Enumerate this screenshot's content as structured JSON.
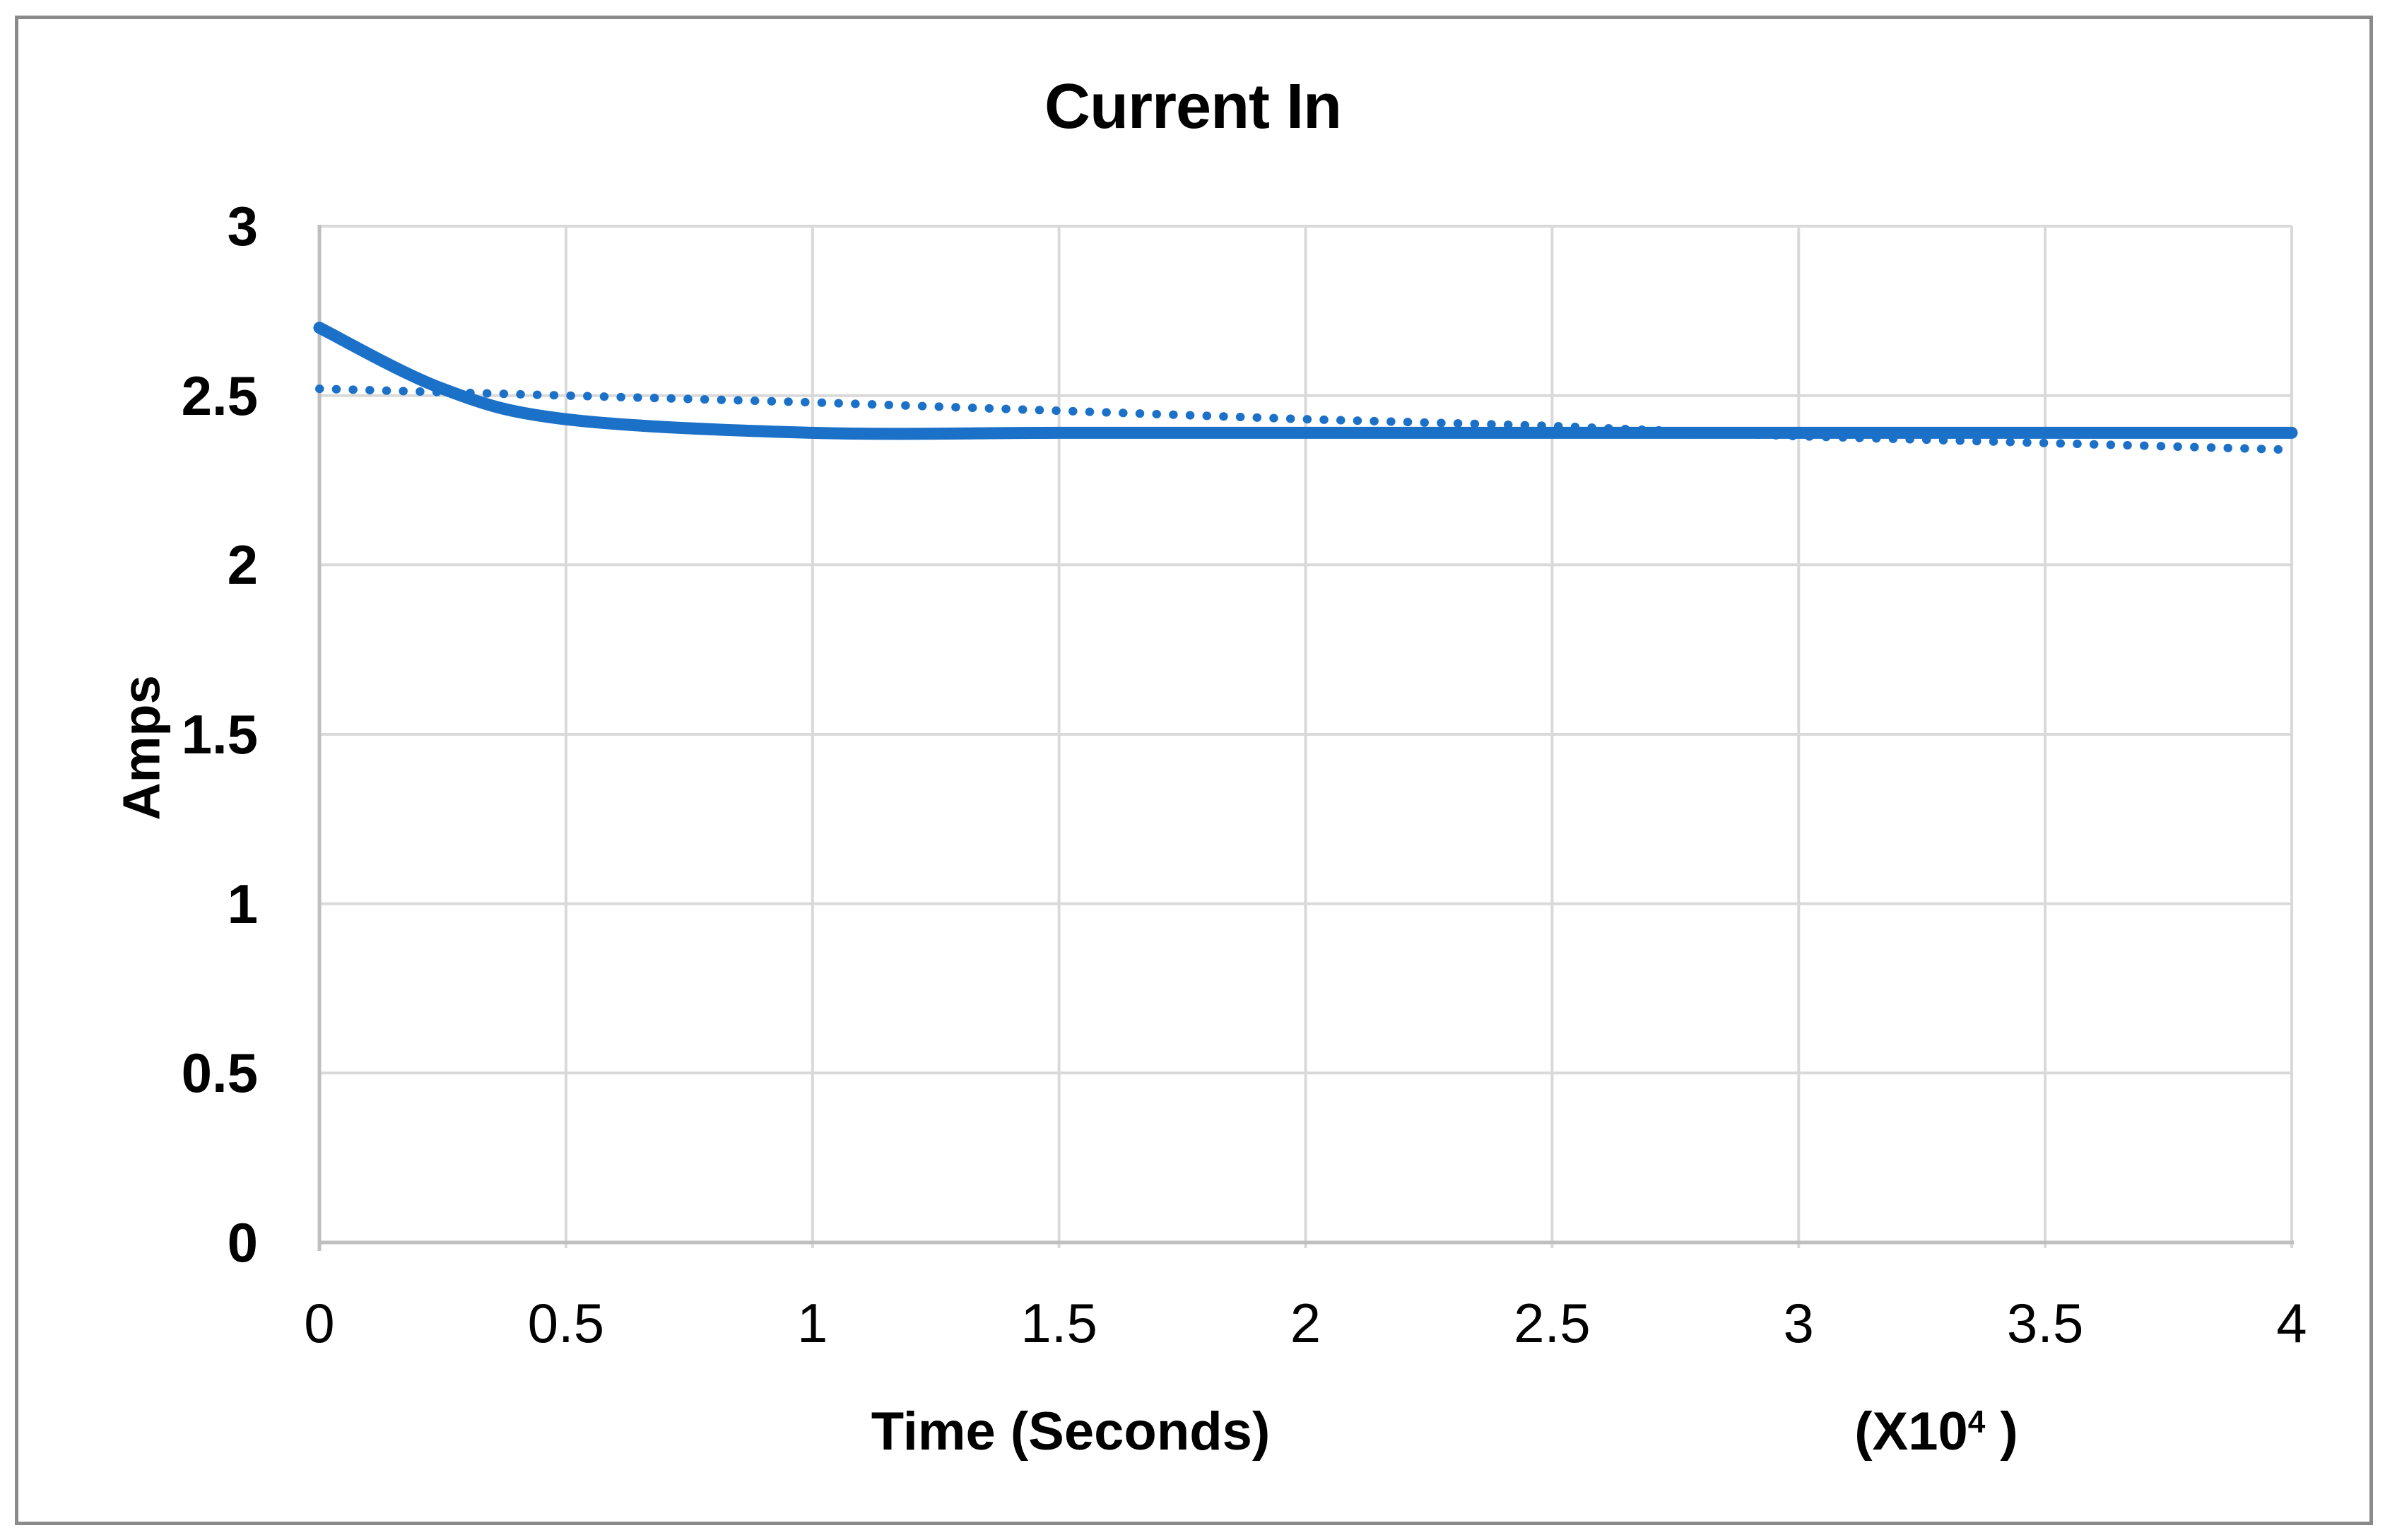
{
  "chart_data": {
    "type": "line",
    "title": "Current In",
    "ylabel": "Amps",
    "xlabel": "Time (Seconds)",
    "x_multiplier_parts": {
      "prefix": "(X10",
      "exponent": "4",
      "suffix": " )"
    },
    "xlim": [
      0,
      4
    ],
    "ylim": [
      0,
      3
    ],
    "x_ticks": [
      "0",
      "0.5",
      "1",
      "1.5",
      "2",
      "2.5",
      "3",
      "3.5",
      "4"
    ],
    "y_ticks": [
      "0",
      "0.5",
      "1",
      "1.5",
      "2",
      "2.5",
      "3"
    ],
    "grid": true,
    "legend": "none",
    "colors": {
      "series_blue": "#1B70C8",
      "gridline": "#D9D9D9",
      "axis_line": "#BFBFBF",
      "frame_border": "#8A8A8A",
      "text": "#000000"
    },
    "series": [
      {
        "name": "current-in-measured",
        "style": "solid",
        "stroke_width": 17,
        "points": [
          [
            0,
            2.7
          ],
          [
            0.25,
            2.52
          ],
          [
            0.5,
            2.43
          ],
          [
            1,
            2.39
          ],
          [
            1.5,
            2.39
          ],
          [
            2,
            2.39
          ],
          [
            2.5,
            2.39
          ],
          [
            3,
            2.39
          ],
          [
            3.5,
            2.39
          ],
          [
            4,
            2.39
          ]
        ]
      },
      {
        "name": "current-in-trendline",
        "style": "dotted",
        "stroke_width": 12,
        "points": [
          [
            0,
            2.52
          ],
          [
            0.5,
            2.5
          ],
          [
            1,
            2.48
          ],
          [
            1.5,
            2.455
          ],
          [
            2,
            2.43
          ],
          [
            2.5,
            2.41
          ],
          [
            3,
            2.38
          ],
          [
            3.5,
            2.36
          ],
          [
            4,
            2.34
          ]
        ]
      }
    ]
  }
}
